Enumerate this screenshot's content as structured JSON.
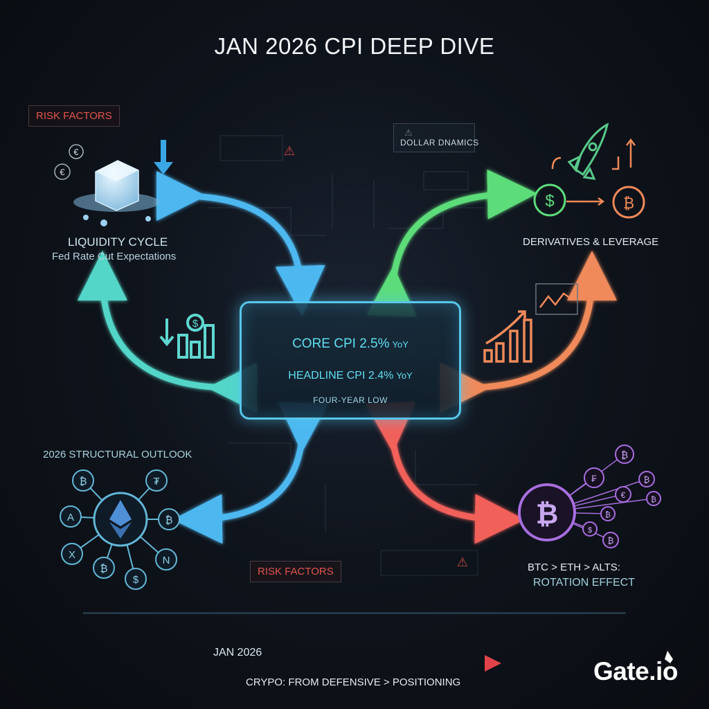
{
  "title": "JAN 2026 CPI DEEP DIVE",
  "center": {
    "core_cpi": "CORE CPI 2.5%",
    "core_unit": "YoY",
    "headline_cpi": "HEADLINE CPI 2.4%",
    "headline_unit": "YoY",
    "note": "FOUR-YEAR LOW"
  },
  "nodes": {
    "liquidity_title": "LIQUIDITY CYCLE",
    "liquidity_sub": "Fed Rate Cut Expectations",
    "dollar": "DOLLAR DNAMICS",
    "derivatives": "DERIVATIVES & LEVERAGE",
    "outlook": "2026 STRUCTURAL OUTLOOK",
    "rotation_line1": "BTC > ETH > ALTS:",
    "rotation_line2": "ROTATION EFFECT",
    "risk_top": "RISK FACTORS",
    "risk_bottom": "RISK FACTORS"
  },
  "glyphs": {
    "bitcoin": "₿",
    "dollar": "$",
    "euro": "€",
    "down_arrow": "↓",
    "warning": "⚠",
    "network_left": [
      "₿",
      "₮",
      "₿",
      "$",
      "₿",
      "X",
      "A",
      "N"
    ],
    "network_right": [
      "₿",
      "₣",
      "₿",
      "€",
      "₿",
      "₿",
      "$",
      "₿"
    ]
  },
  "footer": {
    "date": "JAN 2026",
    "tagline": "CRYPO: FROM DEFENSIVE > POSITIONING",
    "brand": "Gate.io"
  },
  "colors": {
    "blue": "#4db8f0",
    "cyan": "#52d6c8",
    "green": "#5ddc7a",
    "orange": "#f08a5a",
    "red": "#f2605a",
    "purple": "#a86ee0",
    "ice": "#a9d8f2"
  }
}
